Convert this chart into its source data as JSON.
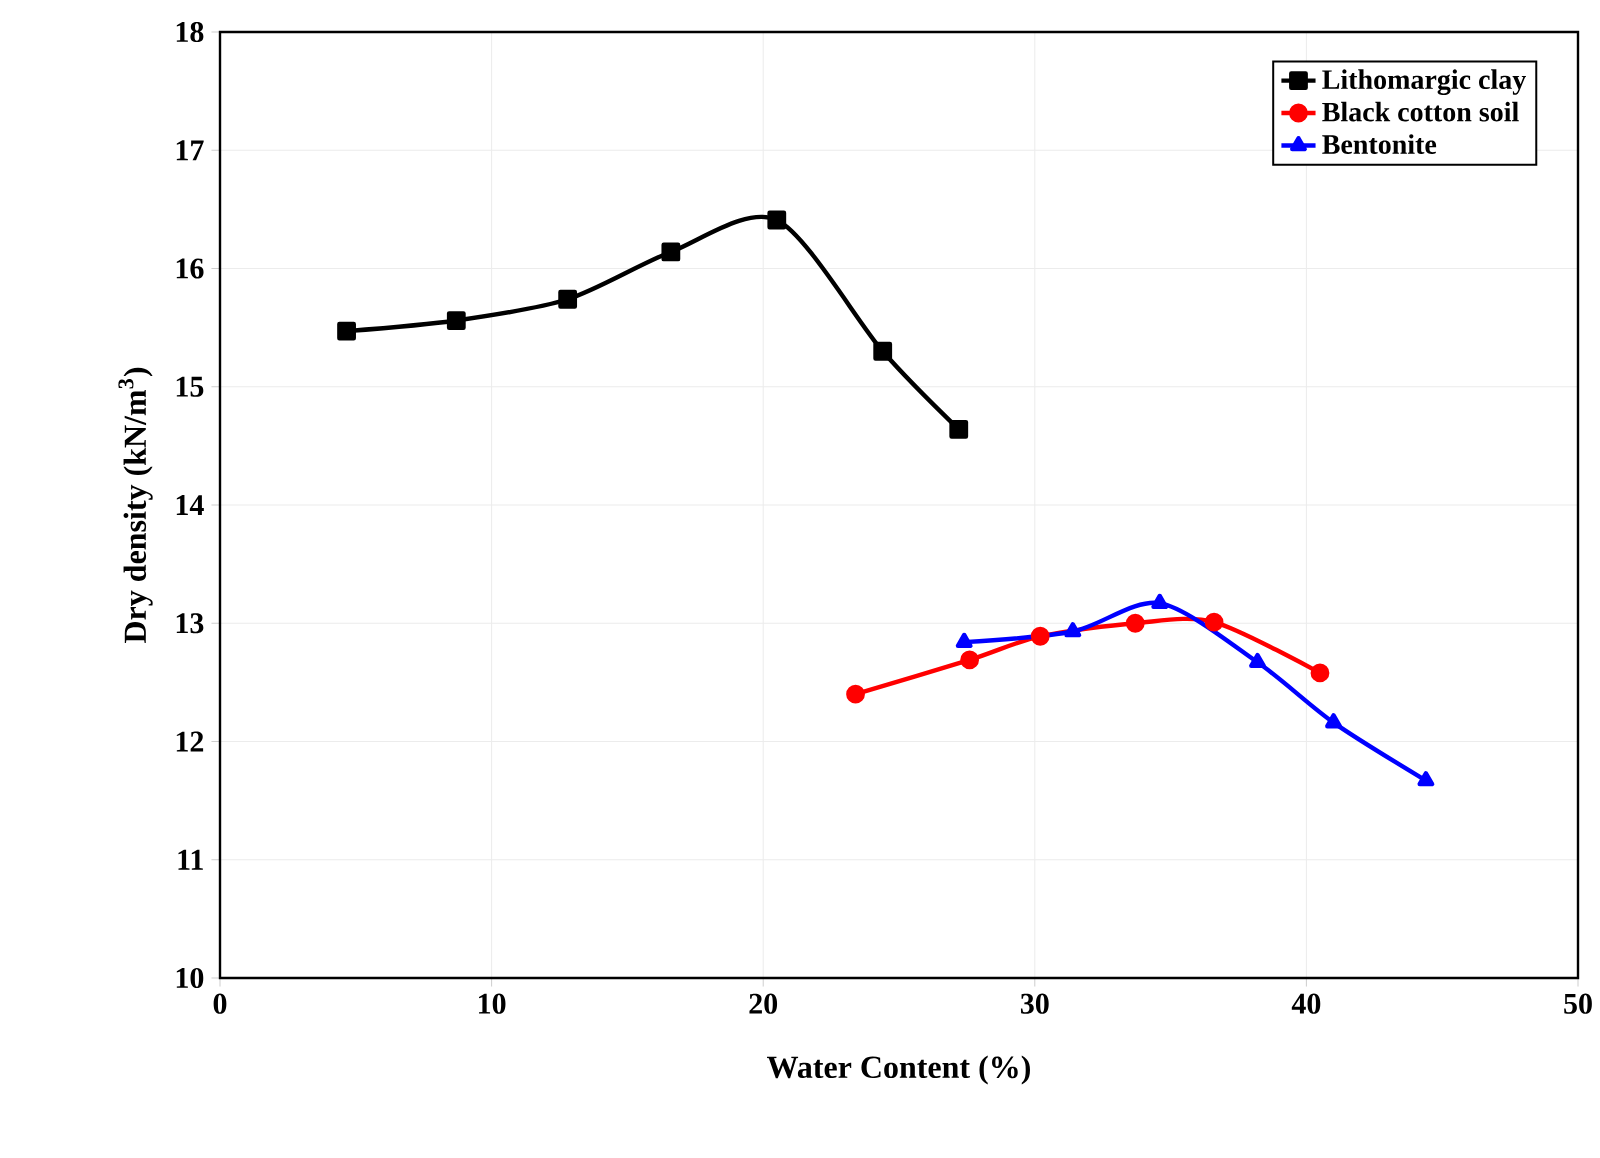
{
  "chart_data": {
    "type": "line",
    "xlabel": "Water Content (%)",
    "ylabel": "Dry density (kN/m$^{3}$)",
    "xlim": [
      0,
      50
    ],
    "ylim": [
      10,
      18
    ],
    "xticks": [
      0,
      10,
      20,
      30,
      40,
      50
    ],
    "yticks": [
      10,
      11,
      12,
      13,
      14,
      15,
      16,
      17,
      18
    ],
    "grid": true,
    "legend": "top right",
    "line_style": "solid",
    "series": [
      {
        "name": "Lithomargic clay",
        "color": "#000000",
        "marker": "square",
        "x": [
          4.66,
          8.7,
          12.8,
          16.6,
          20.5,
          24.4,
          27.2
        ],
        "values": [
          15.47,
          15.56,
          15.74,
          16.14,
          16.41,
          15.3,
          14.64
        ]
      },
      {
        "name": "Black cotton soil",
        "color": "#ff0000",
        "marker": "circle",
        "x": [
          23.4,
          27.6,
          30.2,
          33.7,
          36.6,
          40.5
        ],
        "values": [
          12.4,
          12.69,
          12.89,
          13.0,
          13.01,
          12.58
        ]
      },
      {
        "name": "Bentonite",
        "color": "#0000ff",
        "marker": "triangle",
        "x": [
          27.4,
          31.4,
          34.6,
          38.2,
          41.0,
          44.4
        ],
        "values": [
          12.84,
          12.93,
          13.17,
          12.67,
          12.16,
          11.67
        ]
      }
    ]
  }
}
